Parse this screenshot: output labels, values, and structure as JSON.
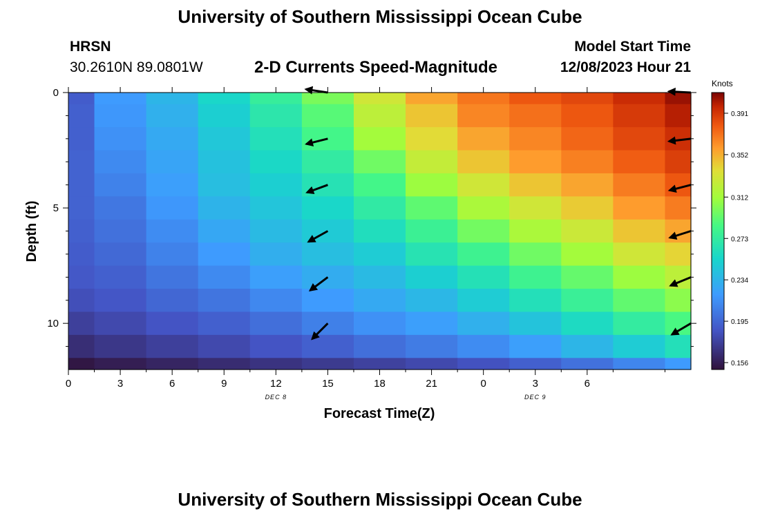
{
  "header": {
    "title": "University of Southern Mississippi Ocean Cube",
    "station": "HRSN",
    "coordinates": "30.2610N  89.0801W",
    "subtitle": "2-D Currents Speed-Magnitude",
    "model_start_label": "Model Start Time",
    "model_start_value": "12/08/2023 Hour 21"
  },
  "footer": {
    "title": "University of Southern Mississippi Ocean Cube"
  },
  "chart_data": {
    "type": "heatmap",
    "xlabel": "Forecast Time(Z)",
    "ylabel": "Depth (ft)",
    "colorbar_label": "Knots",
    "x_range_hours": [
      0,
      36
    ],
    "y_range_ft": [
      0,
      12
    ],
    "x_ticks": [
      {
        "hour": 0,
        "label": "0"
      },
      {
        "hour": 3,
        "label": "3"
      },
      {
        "hour": 6,
        "label": "6"
      },
      {
        "hour": 9,
        "label": "9"
      },
      {
        "hour": 12,
        "label": "12"
      },
      {
        "hour": 15,
        "label": "15"
      },
      {
        "hour": 18,
        "label": "18"
      },
      {
        "hour": 21,
        "label": "21"
      },
      {
        "hour": 24,
        "label": "0"
      },
      {
        "hour": 27,
        "label": "3"
      },
      {
        "hour": 30,
        "label": "6"
      }
    ],
    "date_labels": [
      {
        "hour": 12,
        "label": "DEC 8"
      },
      {
        "hour": 27,
        "label": "DEC 9"
      }
    ],
    "y_ticks": [
      0,
      5,
      10
    ],
    "colorbar": {
      "min": 0.1495,
      "max": 0.4105,
      "ticks": [
        "0.391",
        "0.352",
        "0.312",
        "0.273",
        "0.234",
        "0.195",
        "0.156"
      ]
    },
    "time_centers": [
      0,
      3,
      6,
      9,
      12,
      15,
      18,
      21,
      24,
      27,
      30,
      33,
      36
    ],
    "depth_centers": [
      0,
      1,
      2,
      3,
      4,
      5,
      6,
      7,
      8,
      9,
      10,
      11,
      12
    ],
    "speed_knots": [
      [
        0.19,
        0.22,
        0.235,
        0.255,
        0.275,
        0.3,
        0.33,
        0.355,
        0.37,
        0.38,
        0.385,
        0.395,
        0.405
      ],
      [
        0.192,
        0.218,
        0.232,
        0.25,
        0.268,
        0.29,
        0.322,
        0.345,
        0.365,
        0.372,
        0.38,
        0.39,
        0.4
      ],
      [
        0.192,
        0.215,
        0.228,
        0.245,
        0.262,
        0.283,
        0.312,
        0.338,
        0.355,
        0.365,
        0.375,
        0.385,
        0.394
      ],
      [
        0.193,
        0.212,
        0.225,
        0.242,
        0.256,
        0.272,
        0.297,
        0.325,
        0.345,
        0.358,
        0.367,
        0.378,
        0.388
      ],
      [
        0.193,
        0.208,
        0.222,
        0.24,
        0.25,
        0.264,
        0.283,
        0.31,
        0.33,
        0.345,
        0.355,
        0.368,
        0.38
      ],
      [
        0.193,
        0.203,
        0.218,
        0.234,
        0.244,
        0.255,
        0.271,
        0.292,
        0.315,
        0.33,
        0.343,
        0.358,
        0.368
      ],
      [
        0.192,
        0.2,
        0.213,
        0.227,
        0.238,
        0.247,
        0.26,
        0.278,
        0.298,
        0.315,
        0.328,
        0.345,
        0.355
      ],
      [
        0.19,
        0.196,
        0.208,
        0.22,
        0.231,
        0.24,
        0.248,
        0.265,
        0.28,
        0.297,
        0.312,
        0.33,
        0.34
      ],
      [
        0.188,
        0.192,
        0.202,
        0.212,
        0.222,
        0.23,
        0.238,
        0.25,
        0.263,
        0.28,
        0.294,
        0.31,
        0.322
      ],
      [
        0.183,
        0.187,
        0.195,
        0.202,
        0.211,
        0.22,
        0.228,
        0.236,
        0.248,
        0.262,
        0.277,
        0.293,
        0.305
      ],
      [
        0.175,
        0.18,
        0.186,
        0.192,
        0.199,
        0.207,
        0.215,
        0.222,
        0.232,
        0.243,
        0.258,
        0.273,
        0.286
      ],
      [
        0.165,
        0.17,
        0.175,
        0.18,
        0.186,
        0.192,
        0.199,
        0.205,
        0.213,
        0.222,
        0.235,
        0.248,
        0.262
      ],
      [
        0.152,
        0.156,
        0.16,
        0.164,
        0.168,
        0.172,
        0.176,
        0.18,
        0.185,
        0.192,
        0.2,
        0.21,
        0.22
      ]
    ],
    "vectors": [
      {
        "hour": 15,
        "depth": 0,
        "u": -1.0,
        "v": 0.15
      },
      {
        "hour": 15,
        "depth": 2,
        "u": -1.0,
        "v": -0.25
      },
      {
        "hour": 15,
        "depth": 4,
        "u": -0.95,
        "v": -0.35
      },
      {
        "hour": 15,
        "depth": 6,
        "u": -0.9,
        "v": -0.5
      },
      {
        "hour": 15,
        "depth": 8,
        "u": -0.8,
        "v": -0.6
      },
      {
        "hour": 15,
        "depth": 10,
        "u": -0.7,
        "v": -0.7
      },
      {
        "hour": 36,
        "depth": 0,
        "u": -1.0,
        "v": 0.05
      },
      {
        "hour": 36,
        "depth": 2,
        "u": -1.0,
        "v": -0.12
      },
      {
        "hour": 36,
        "depth": 4,
        "u": -0.97,
        "v": -0.25
      },
      {
        "hour": 36,
        "depth": 6,
        "u": -0.95,
        "v": -0.3
      },
      {
        "hour": 36,
        "depth": 8,
        "u": -0.92,
        "v": -0.38
      },
      {
        "hour": 36,
        "depth": 10,
        "u": -0.85,
        "v": -0.5
      }
    ]
  }
}
